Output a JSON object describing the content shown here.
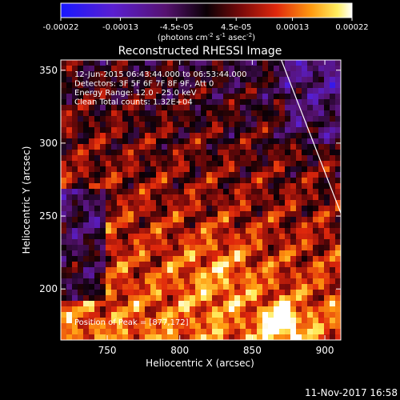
{
  "chart_data": {
    "type": "heatmap",
    "title": "Reconstructed RHESSI Image",
    "xlabel": "Heliocentric X (arcsec)",
    "ylabel": "Heliocentric Y (arcsec)",
    "xlim": [
      718,
      911
    ],
    "ylim": [
      165,
      357
    ],
    "x_ticks": [
      750,
      800,
      850,
      900
    ],
    "y_ticks": [
      200,
      250,
      300,
      350
    ],
    "colorbar": {
      "ticks": [
        "-0.00022",
        "-0.00013",
        "-4.5e-05",
        "4.5e-05",
        "0.00013",
        "0.00022"
      ],
      "tick_values": [
        -0.00022,
        -0.00013,
        -4.5e-05,
        4.5e-05,
        0.00013,
        0.00022
      ],
      "range": [
        -0.00022,
        0.00022
      ],
      "unit_text": "(photons cm",
      "unit_sup1": "-2",
      "unit_mid": " s",
      "unit_sup2": "-1",
      "unit_mid2": " asec",
      "unit_sup3": "-2",
      "unit_end": ")"
    },
    "annotations": [
      "12-Jun-2015 06:43:44.000 to 06:53:44.000",
      "Detectors: 3F 5F 6F 7F 8F 9F, Att 0",
      "Energy Range: 12.0 - 25.0 keV",
      "Clean     Total counts: 1.32E+04"
    ],
    "peak_label": "Position of Peak = [877,172]",
    "peak": [
      877,
      172
    ],
    "limb_line": [
      [
        870,
        357
      ],
      [
        911,
        252
      ]
    ]
  },
  "footer": {
    "timestamp": "11-Nov-2017 16:58"
  },
  "colors": {
    "background": "#000000",
    "text": "#ffffff"
  }
}
